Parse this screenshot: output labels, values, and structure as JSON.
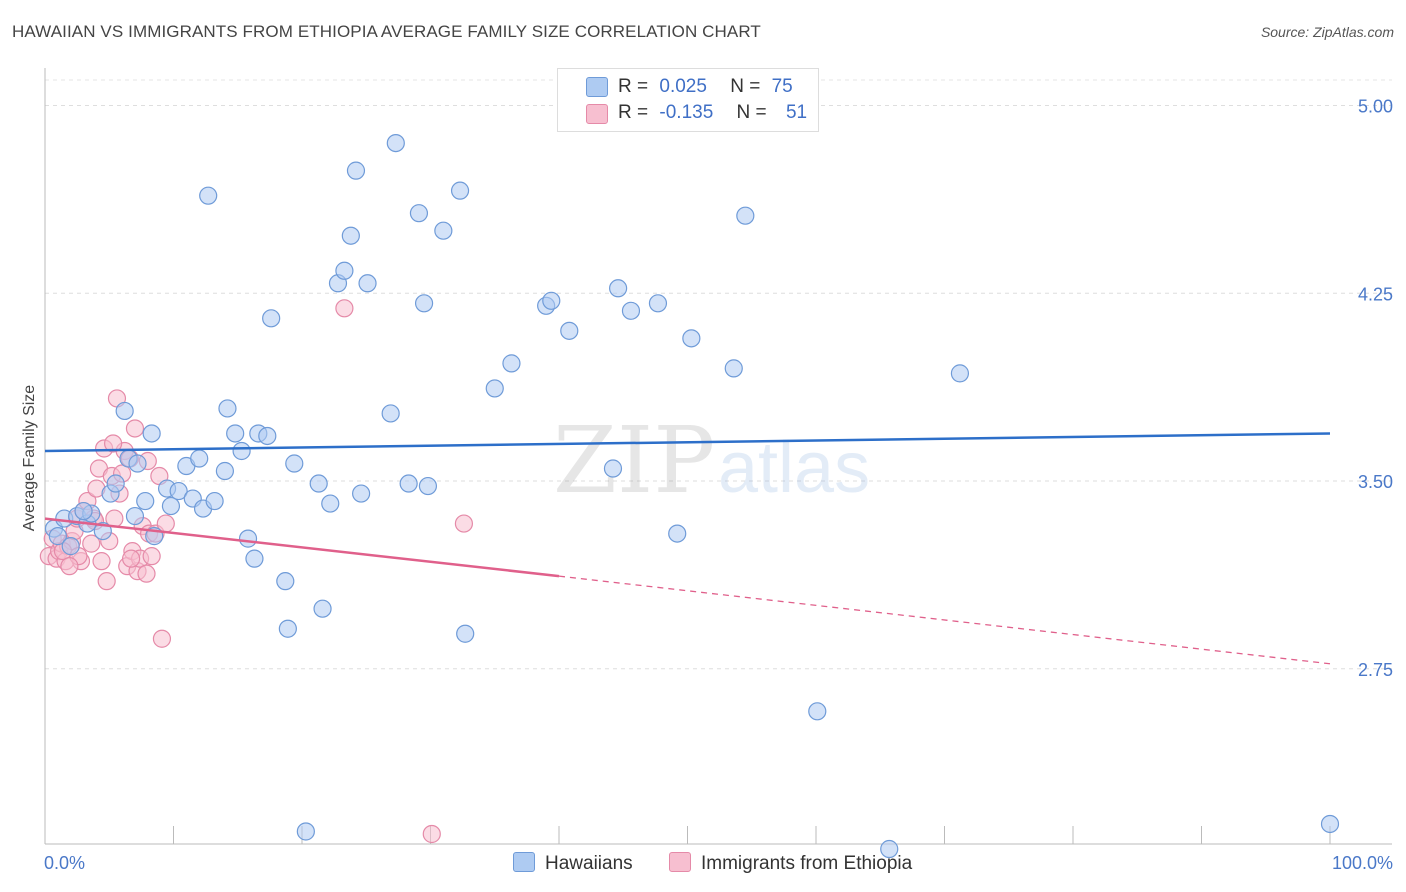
{
  "title": "HAWAIIAN VS IMMIGRANTS FROM ETHIOPIA AVERAGE FAMILY SIZE CORRELATION CHART",
  "source": "Source: ZipAtlas.com",
  "legend": {
    "row1": {
      "r_label": "R =",
      "r_value": "0.025",
      "n_label": "N =",
      "n_value": "75"
    },
    "row2": {
      "r_label": "R =",
      "r_value": "-0.135",
      "n_label": "N =",
      "n_value": "51"
    }
  },
  "bottom_legend": {
    "series1": "Hawaiians",
    "series2": "Immigrants from Ethiopia"
  },
  "colors": {
    "blue_fill": "#aecbf2",
    "blue_stroke": "#6f9bd8",
    "blue_line": "#2d6fc9",
    "pink_fill": "#f7bfd0",
    "pink_stroke": "#e58aa8",
    "pink_line": "#e0608b"
  },
  "chart_data": {
    "type": "scatter",
    "title": "HAWAIIAN VS IMMIGRANTS FROM ETHIOPIA AVERAGE FAMILY SIZE CORRELATION CHART",
    "xlabel": "",
    "ylabel": "Average Family Size",
    "xlim": [
      0,
      100
    ],
    "ylim": [
      2.05,
      5.15
    ],
    "x_tick_labels": [
      "0.0%",
      "100.0%"
    ],
    "y_ticks": [
      2.75,
      3.5,
      4.25,
      5.0
    ],
    "y_tick_labels": [
      "2.75",
      "3.50",
      "4.25",
      "5.00"
    ],
    "grid": true,
    "series": [
      {
        "name": "Hawaiians",
        "R": 0.025,
        "N": 75,
        "trend": {
          "x": [
            0,
            100
          ],
          "y": [
            3.62,
            3.69
          ]
        },
        "points": [
          [
            0.7,
            3.31
          ],
          [
            1.5,
            3.35
          ],
          [
            2.5,
            3.36
          ],
          [
            3.3,
            3.33
          ],
          [
            3.6,
            3.37
          ],
          [
            4.5,
            3.3
          ],
          [
            5.1,
            3.45
          ],
          [
            5.5,
            3.49
          ],
          [
            6.2,
            3.78
          ],
          [
            6.5,
            3.59
          ],
          [
            7.0,
            3.36
          ],
          [
            7.2,
            3.57
          ],
          [
            7.8,
            3.42
          ],
          [
            8.3,
            3.69
          ],
          [
            8.5,
            3.28
          ],
          [
            9.5,
            3.47
          ],
          [
            9.8,
            3.4
          ],
          [
            10.4,
            3.46
          ],
          [
            11.0,
            3.56
          ],
          [
            11.5,
            3.43
          ],
          [
            12.0,
            3.59
          ],
          [
            12.3,
            3.39
          ],
          [
            12.7,
            4.64
          ],
          [
            13.2,
            3.42
          ],
          [
            14.0,
            3.54
          ],
          [
            14.2,
            3.79
          ],
          [
            14.8,
            3.69
          ],
          [
            15.3,
            3.62
          ],
          [
            15.8,
            3.27
          ],
          [
            16.3,
            3.19
          ],
          [
            16.6,
            3.69
          ],
          [
            17.3,
            3.68
          ],
          [
            17.6,
            4.15
          ],
          [
            18.7,
            3.1
          ],
          [
            18.9,
            2.91
          ],
          [
            19.4,
            3.57
          ],
          [
            20.3,
            2.1
          ],
          [
            21.3,
            3.49
          ],
          [
            21.6,
            2.99
          ],
          [
            22.2,
            3.41
          ],
          [
            22.8,
            4.29
          ],
          [
            23.3,
            4.34
          ],
          [
            23.8,
            4.48
          ],
          [
            24.2,
            4.74
          ],
          [
            24.6,
            3.45
          ],
          [
            25.1,
            4.29
          ],
          [
            26.9,
            3.77
          ],
          [
            27.3,
            4.85
          ],
          [
            28.3,
            3.49
          ],
          [
            29.1,
            4.57
          ],
          [
            29.5,
            4.21
          ],
          [
            29.8,
            3.48
          ],
          [
            31.0,
            4.5
          ],
          [
            32.3,
            4.66
          ],
          [
            32.7,
            2.89
          ],
          [
            35.0,
            3.87
          ],
          [
            36.3,
            3.97
          ],
          [
            39.0,
            4.2
          ],
          [
            39.4,
            4.22
          ],
          [
            40.8,
            4.1
          ],
          [
            44.2,
            3.55
          ],
          [
            44.6,
            4.27
          ],
          [
            45.6,
            4.18
          ],
          [
            47.7,
            4.21
          ],
          [
            49.2,
            3.29
          ],
          [
            50.3,
            4.07
          ],
          [
            53.6,
            3.95
          ],
          [
            54.5,
            4.56
          ],
          [
            60.1,
            2.58
          ],
          [
            65.7,
            2.03
          ],
          [
            71.2,
            3.93
          ],
          [
            100.0,
            2.13
          ],
          [
            1.0,
            3.28
          ],
          [
            2.0,
            3.24
          ],
          [
            3.0,
            3.38
          ]
        ]
      },
      {
        "name": "Immigrants from Ethiopia",
        "R": -0.135,
        "N": 51,
        "trend": {
          "x": [
            0,
            40
          ],
          "y": [
            3.35,
            3.12
          ]
        },
        "trend_dashed": {
          "x": [
            40,
            100
          ],
          "y": [
            3.12,
            2.77
          ]
        },
        "points": [
          [
            0.3,
            3.2
          ],
          [
            0.6,
            3.27
          ],
          [
            0.9,
            3.19
          ],
          [
            1.1,
            3.22
          ],
          [
            1.3,
            3.25
          ],
          [
            1.6,
            3.18
          ],
          [
            1.8,
            3.24
          ],
          [
            2.1,
            3.26
          ],
          [
            2.3,
            3.3
          ],
          [
            2.5,
            3.35
          ],
          [
            2.8,
            3.18
          ],
          [
            3.0,
            3.38
          ],
          [
            3.3,
            3.42
          ],
          [
            3.6,
            3.25
          ],
          [
            3.8,
            3.35
          ],
          [
            4.0,
            3.47
          ],
          [
            4.2,
            3.55
          ],
          [
            4.4,
            3.18
          ],
          [
            4.6,
            3.63
          ],
          [
            4.8,
            3.1
          ],
          [
            5.0,
            3.26
          ],
          [
            5.2,
            3.52
          ],
          [
            5.4,
            3.35
          ],
          [
            5.6,
            3.83
          ],
          [
            5.8,
            3.45
          ],
          [
            6.0,
            3.53
          ],
          [
            6.2,
            3.62
          ],
          [
            6.4,
            3.16
          ],
          [
            6.6,
            3.59
          ],
          [
            6.8,
            3.22
          ],
          [
            7.0,
            3.71
          ],
          [
            7.2,
            3.14
          ],
          [
            7.4,
            3.19
          ],
          [
            7.6,
            3.32
          ],
          [
            7.9,
            3.13
          ],
          [
            8.1,
            3.29
          ],
          [
            8.3,
            3.2
          ],
          [
            8.6,
            3.29
          ],
          [
            8.9,
            3.52
          ],
          [
            9.1,
            2.87
          ],
          [
            9.4,
            3.33
          ],
          [
            23.3,
            4.19
          ],
          [
            30.1,
            2.09
          ],
          [
            32.6,
            3.33
          ],
          [
            1.4,
            3.22
          ],
          [
            2.6,
            3.2
          ],
          [
            3.9,
            3.34
          ],
          [
            5.3,
            3.65
          ],
          [
            6.7,
            3.19
          ],
          [
            8.0,
            3.58
          ],
          [
            1.9,
            3.16
          ]
        ]
      }
    ]
  }
}
